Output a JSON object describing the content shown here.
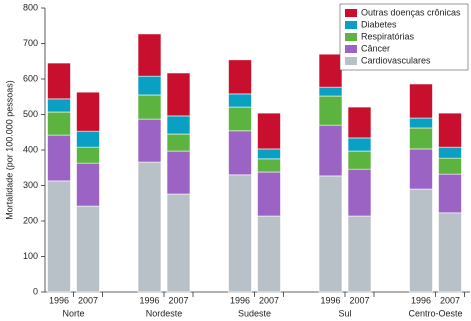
{
  "chart_data": {
    "type": "stacked-bar",
    "y_label": "Mortalidade (por 100.000 pessoas)",
    "categories": [
      "1996",
      "2007",
      "1996",
      "2007",
      "1996",
      "2007",
      "1996",
      "2007",
      "1996",
      "2007"
    ],
    "groups": [
      "Norte",
      "Nordeste",
      "Sudeste",
      "Sul",
      "Centro-Oeste"
    ],
    "series": [
      {
        "name": "Cardiovasculares",
        "color": "#b9c1c8",
        "values": [
          313,
          242,
          366,
          276,
          330,
          214,
          327,
          214,
          290,
          223
        ]
      },
      {
        "name": "Câncer",
        "color": "#9b63c4",
        "values": [
          129,
          121,
          121,
          121,
          124,
          124,
          143,
          132,
          113,
          109
        ]
      },
      {
        "name": "Respiratórias",
        "color": "#5db33f",
        "values": [
          65,
          45,
          68,
          48,
          67,
          37,
          82,
          51,
          59,
          45
        ]
      },
      {
        "name": "Diabetes",
        "color": "#0aa0c4",
        "values": [
          37,
          45,
          53,
          51,
          37,
          28,
          25,
          37,
          28,
          31
        ]
      },
      {
        "name": "Outras doenças crônicas",
        "color": "#c8102e",
        "values": [
          101,
          110,
          119,
          121,
          96,
          101,
          93,
          87,
          96,
          96
        ]
      }
    ],
    "ylim": [
      0,
      800
    ],
    "yticks": [
      0,
      100,
      200,
      300,
      400,
      500,
      600,
      700,
      800
    ],
    "legend": "top-right"
  }
}
